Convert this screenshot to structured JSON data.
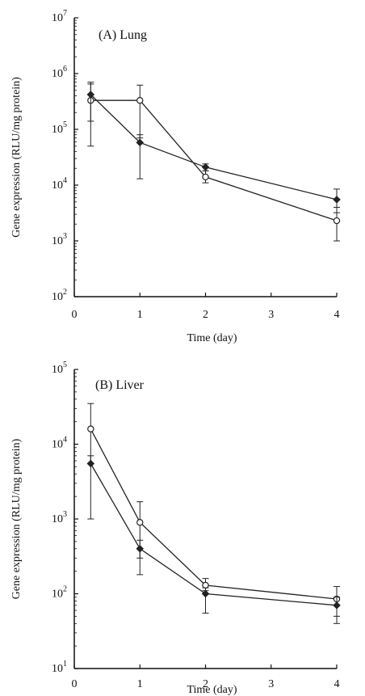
{
  "chart_data": [
    {
      "type": "line",
      "yscale": "log",
      "panel_label": "(A) Lung",
      "xlabel": "Time (day)",
      "ylabel": "Gene expression (RLU/mg protein)",
      "xlim": [
        0,
        4
      ],
      "ylim": [
        100,
        10000000
      ],
      "xticks": [
        "0",
        "1",
        "2",
        "3",
        "4"
      ],
      "yticks": [
        {
          "value": 100,
          "base": "10",
          "exp": "2"
        },
        {
          "value": 1000,
          "base": "10",
          "exp": "3"
        },
        {
          "value": 10000,
          "base": "10",
          "exp": "4"
        },
        {
          "value": 100000,
          "base": "10",
          "exp": "5"
        },
        {
          "value": 1000000,
          "base": "10",
          "exp": "6"
        },
        {
          "value": 10000000,
          "base": "10",
          "exp": "7"
        }
      ],
      "grid": false,
      "series": [
        {
          "marker": "open-circle",
          "x": [
            0.25,
            1,
            2,
            4
          ],
          "y": [
            330000,
            330000,
            14000,
            2300
          ],
          "err_low": [
            50000,
            70000,
            11000,
            1000
          ],
          "err_high": [
            650000,
            620000,
            18000,
            4000
          ]
        },
        {
          "marker": "filled-diamond",
          "x": [
            0.25,
            1,
            2,
            4
          ],
          "y": [
            420000,
            58000,
            21000,
            5500
          ],
          "err_low": [
            140000,
            13000,
            18000,
            3200
          ],
          "err_high": [
            700000,
            80000,
            24000,
            8500
          ]
        }
      ]
    },
    {
      "type": "line",
      "yscale": "log",
      "panel_label": "(B) Liver",
      "xlabel": "Time (day)",
      "ylabel": "Gene expression (RLU/mg protein)",
      "xlim": [
        0,
        4
      ],
      "ylim": [
        10,
        100000
      ],
      "xticks": [
        "0",
        "1",
        "2",
        "3",
        "4"
      ],
      "yticks": [
        {
          "value": 10,
          "base": "10",
          "exp": "1"
        },
        {
          "value": 100,
          "base": "10",
          "exp": "2"
        },
        {
          "value": 1000,
          "base": "10",
          "exp": "3"
        },
        {
          "value": 10000,
          "base": "10",
          "exp": "4"
        },
        {
          "value": 100000,
          "base": "10",
          "exp": "5"
        }
      ],
      "grid": false,
      "series": [
        {
          "marker": "open-circle",
          "x": [
            0.25,
            1,
            2,
            4
          ],
          "y": [
            16000,
            900,
            130,
            85
          ],
          "err_low": [
            5500,
            300,
            110,
            50
          ],
          "err_high": [
            35000,
            1700,
            160,
            125
          ]
        },
        {
          "marker": "filled-diamond",
          "x": [
            0.25,
            1,
            2,
            4
          ],
          "y": [
            5500,
            400,
            100,
            70
          ],
          "err_low": [
            1000,
            180,
            55,
            40
          ],
          "err_high": [
            7000,
            520,
            120,
            90
          ]
        }
      ]
    }
  ]
}
